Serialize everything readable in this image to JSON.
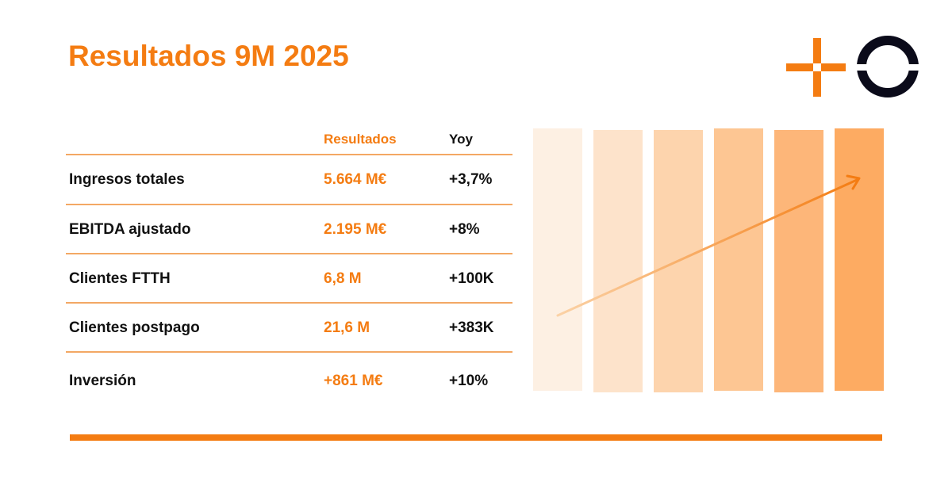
{
  "title": "Resultados 9M 2025",
  "table": {
    "headers": {
      "value": "Resultados",
      "yoy": "Yoy"
    },
    "rows": [
      {
        "label": "Ingresos totales",
        "value": "5.664 M€",
        "yoy": "+3,7%"
      },
      {
        "label": "EBITDA ajustado",
        "value": "2.195 M€",
        "yoy": "+8%"
      },
      {
        "label": "Clientes FTTH",
        "value": "6,8 M",
        "yoy": "+100K"
      },
      {
        "label": "Clientes postpago",
        "value": "21,6 M",
        "yoy": "+383K"
      },
      {
        "label": "Inversión",
        "value": "+861 M€",
        "yoy": "+10%"
      }
    ]
  },
  "colors": {
    "accent": "#f47c12",
    "logo_dark": "#0b0b1a",
    "bars": [
      "#fdf0e3",
      "#fde3cb",
      "#fdd4ad",
      "#fdc693",
      "#fdb679",
      "#fdab62"
    ]
  },
  "icons": {
    "logo": "plus-and-ring-logo",
    "decoration": "rising-arrow-icon"
  }
}
